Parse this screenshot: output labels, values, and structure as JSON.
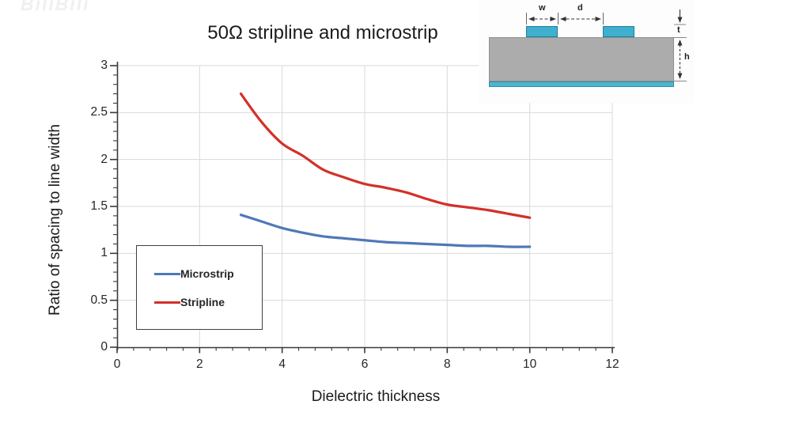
{
  "watermark": {
    "text": "BiliBili"
  },
  "chart_data": {
    "type": "line",
    "title": "50Ω stripline and microstrip",
    "xlabel": "Dielectric thickness",
    "ylabel": "Ratio of spacing to line width",
    "xlim": [
      0,
      12
    ],
    "ylim": [
      0,
      3
    ],
    "x_ticks": [
      0,
      2,
      4,
      6,
      8,
      10,
      12
    ],
    "x_tick_labels": [
      "0",
      "2",
      "4",
      "6",
      "8",
      "10",
      "12"
    ],
    "y_ticks": [
      0,
      0.5,
      1,
      1.5,
      2,
      2.5,
      3
    ],
    "y_tick_labels": [
      "0",
      "0.5",
      "1",
      "1.5",
      "2",
      "2.5",
      "3"
    ],
    "x_minor_step": 0.4,
    "y_minor_step": 0.1,
    "grid": true,
    "legend_position": "lower-left",
    "x": [
      3,
      3.5,
      4,
      4.5,
      5,
      5.5,
      6,
      6.5,
      7,
      7.5,
      8,
      8.5,
      9,
      9.5,
      10
    ],
    "series": [
      {
        "name": "Microstrip",
        "color": "#4f78b8",
        "values": [
          1.41,
          1.34,
          1.27,
          1.22,
          1.18,
          1.16,
          1.14,
          1.12,
          1.11,
          1.1,
          1.09,
          1.08,
          1.08,
          1.07,
          1.07
        ]
      },
      {
        "name": "Stripline",
        "color": "#d23129",
        "values": [
          2.7,
          2.4,
          2.17,
          2.04,
          1.89,
          1.81,
          1.74,
          1.7,
          1.65,
          1.58,
          1.52,
          1.49,
          1.46,
          1.42,
          1.38
        ]
      }
    ]
  },
  "inset": {
    "labels": {
      "w": "w",
      "d": "d",
      "t": "t",
      "h": "h"
    },
    "colors": {
      "trace": "#3fb0cf",
      "substrate": "#acacac",
      "ground": "#4fb4cd"
    }
  },
  "colors": {
    "grid": "#d9d9d9",
    "axis": "#3a3a3a",
    "text": "#262626"
  }
}
